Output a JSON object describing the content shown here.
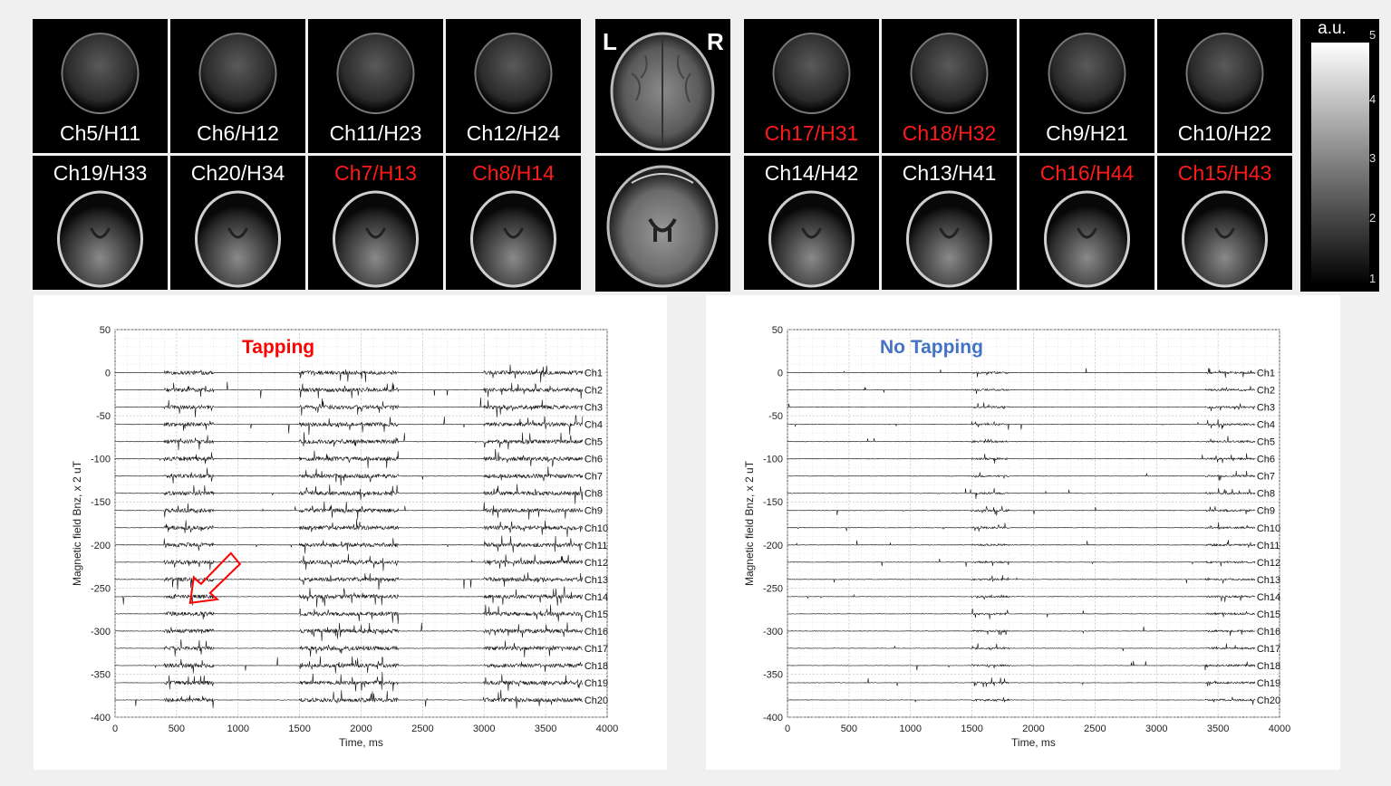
{
  "left_group": {
    "top_row": [
      {
        "label": "Ch5/H11",
        "color": "#ffffff"
      },
      {
        "label": "Ch6/H12",
        "color": "#ffffff"
      },
      {
        "label": "Ch11/H23",
        "color": "#ffffff"
      },
      {
        "label": "Ch12/H24",
        "color": "#ffffff"
      }
    ],
    "bottom_row": [
      {
        "label": "Ch19/H33",
        "color": "#ffffff"
      },
      {
        "label": "Ch20/H34",
        "color": "#ffffff"
      },
      {
        "label": "Ch7/H13",
        "color": "#ff1a1a"
      },
      {
        "label": "Ch8/H14",
        "color": "#ff1a1a"
      }
    ]
  },
  "center": {
    "left_marker": "L",
    "right_marker": "R"
  },
  "right_group": {
    "top_row": [
      {
        "label": "Ch17/H31",
        "color": "#ff1a1a"
      },
      {
        "label": "Ch18/H32",
        "color": "#ff1a1a"
      },
      {
        "label": "Ch9/H21",
        "color": "#ffffff"
      },
      {
        "label": "Ch10/H22",
        "color": "#ffffff"
      }
    ],
    "bottom_row": [
      {
        "label": "Ch14/H42",
        "color": "#ffffff"
      },
      {
        "label": "Ch13/H41",
        "color": "#ffffff"
      },
      {
        "label": "Ch16/H44",
        "color": "#ff1a1a"
      },
      {
        "label": "Ch15/H43",
        "color": "#ff1a1a"
      }
    ]
  },
  "colorbar": {
    "title": "a.u.",
    "ticks": [
      "5",
      "4",
      "3",
      "2",
      "1"
    ]
  },
  "chart_data": [
    {
      "type": "line",
      "title": "Tapping",
      "title_color": "#ff0000",
      "xlabel": "Time, ms",
      "ylabel": "Magnetic field Bnz, x 2 uT",
      "xlim": [
        0,
        4000
      ],
      "ylim": [
        -400,
        50
      ],
      "xticks": [
        "0",
        "500",
        "1000",
        "1500",
        "2000",
        "2500",
        "3000",
        "3500",
        "4000"
      ],
      "yticks": [
        "50",
        "0",
        "-50",
        "-100",
        "-150",
        "-200",
        "-250",
        "-300",
        "-350",
        "-400"
      ],
      "grid": true,
      "channels": [
        "Ch1",
        "Ch2",
        "Ch3",
        "Ch4",
        "Ch5",
        "Ch6",
        "Ch7",
        "Ch8",
        "Ch9",
        "Ch10",
        "Ch11",
        "Ch12",
        "Ch13",
        "Ch14",
        "Ch15",
        "Ch16",
        "Ch17",
        "Ch18",
        "Ch19",
        "Ch20"
      ],
      "baselines": [
        0,
        -20,
        -40,
        -60,
        -80,
        -100,
        -120,
        -140,
        -160,
        -180,
        -200,
        -220,
        -240,
        -260,
        -280,
        -300,
        -320,
        -340,
        -360,
        -380
      ],
      "signal_end_ms": 3800,
      "activity_windows_ms": [
        [
          400,
          800
        ],
        [
          1500,
          2300
        ],
        [
          3000,
          3800
        ]
      ],
      "arrow": {
        "target_channel": "Ch15",
        "color": "#ff0000"
      }
    },
    {
      "type": "line",
      "title": "No Tapping",
      "title_color": "#4472c4",
      "xlabel": "Time, ms",
      "ylabel": "Magnetic field Bnz, x 2 uT",
      "xlim": [
        0,
        4000
      ],
      "ylim": [
        -400,
        50
      ],
      "xticks": [
        "0",
        "500",
        "1000",
        "1500",
        "2000",
        "2500",
        "3000",
        "3500",
        "4000"
      ],
      "yticks": [
        "50",
        "0",
        "-50",
        "-100",
        "-150",
        "-200",
        "-250",
        "-300",
        "-350",
        "-400"
      ],
      "grid": true,
      "channels": [
        "Ch1",
        "Ch2",
        "Ch3",
        "Ch4",
        "Ch5",
        "Ch6",
        "Ch7",
        "Ch8",
        "Ch9",
        "Ch10",
        "Ch11",
        "Ch12",
        "Ch13",
        "Ch14",
        "Ch15",
        "Ch16",
        "Ch17",
        "Ch18",
        "Ch19",
        "Ch20"
      ],
      "baselines": [
        0,
        -20,
        -40,
        -60,
        -80,
        -100,
        -120,
        -140,
        -160,
        -180,
        -200,
        -220,
        -240,
        -260,
        -280,
        -300,
        -320,
        -340,
        -360,
        -380
      ],
      "signal_end_ms": 3800,
      "activity_windows_ms": [
        [
          1500,
          1800
        ],
        [
          3400,
          3800
        ]
      ]
    }
  ]
}
